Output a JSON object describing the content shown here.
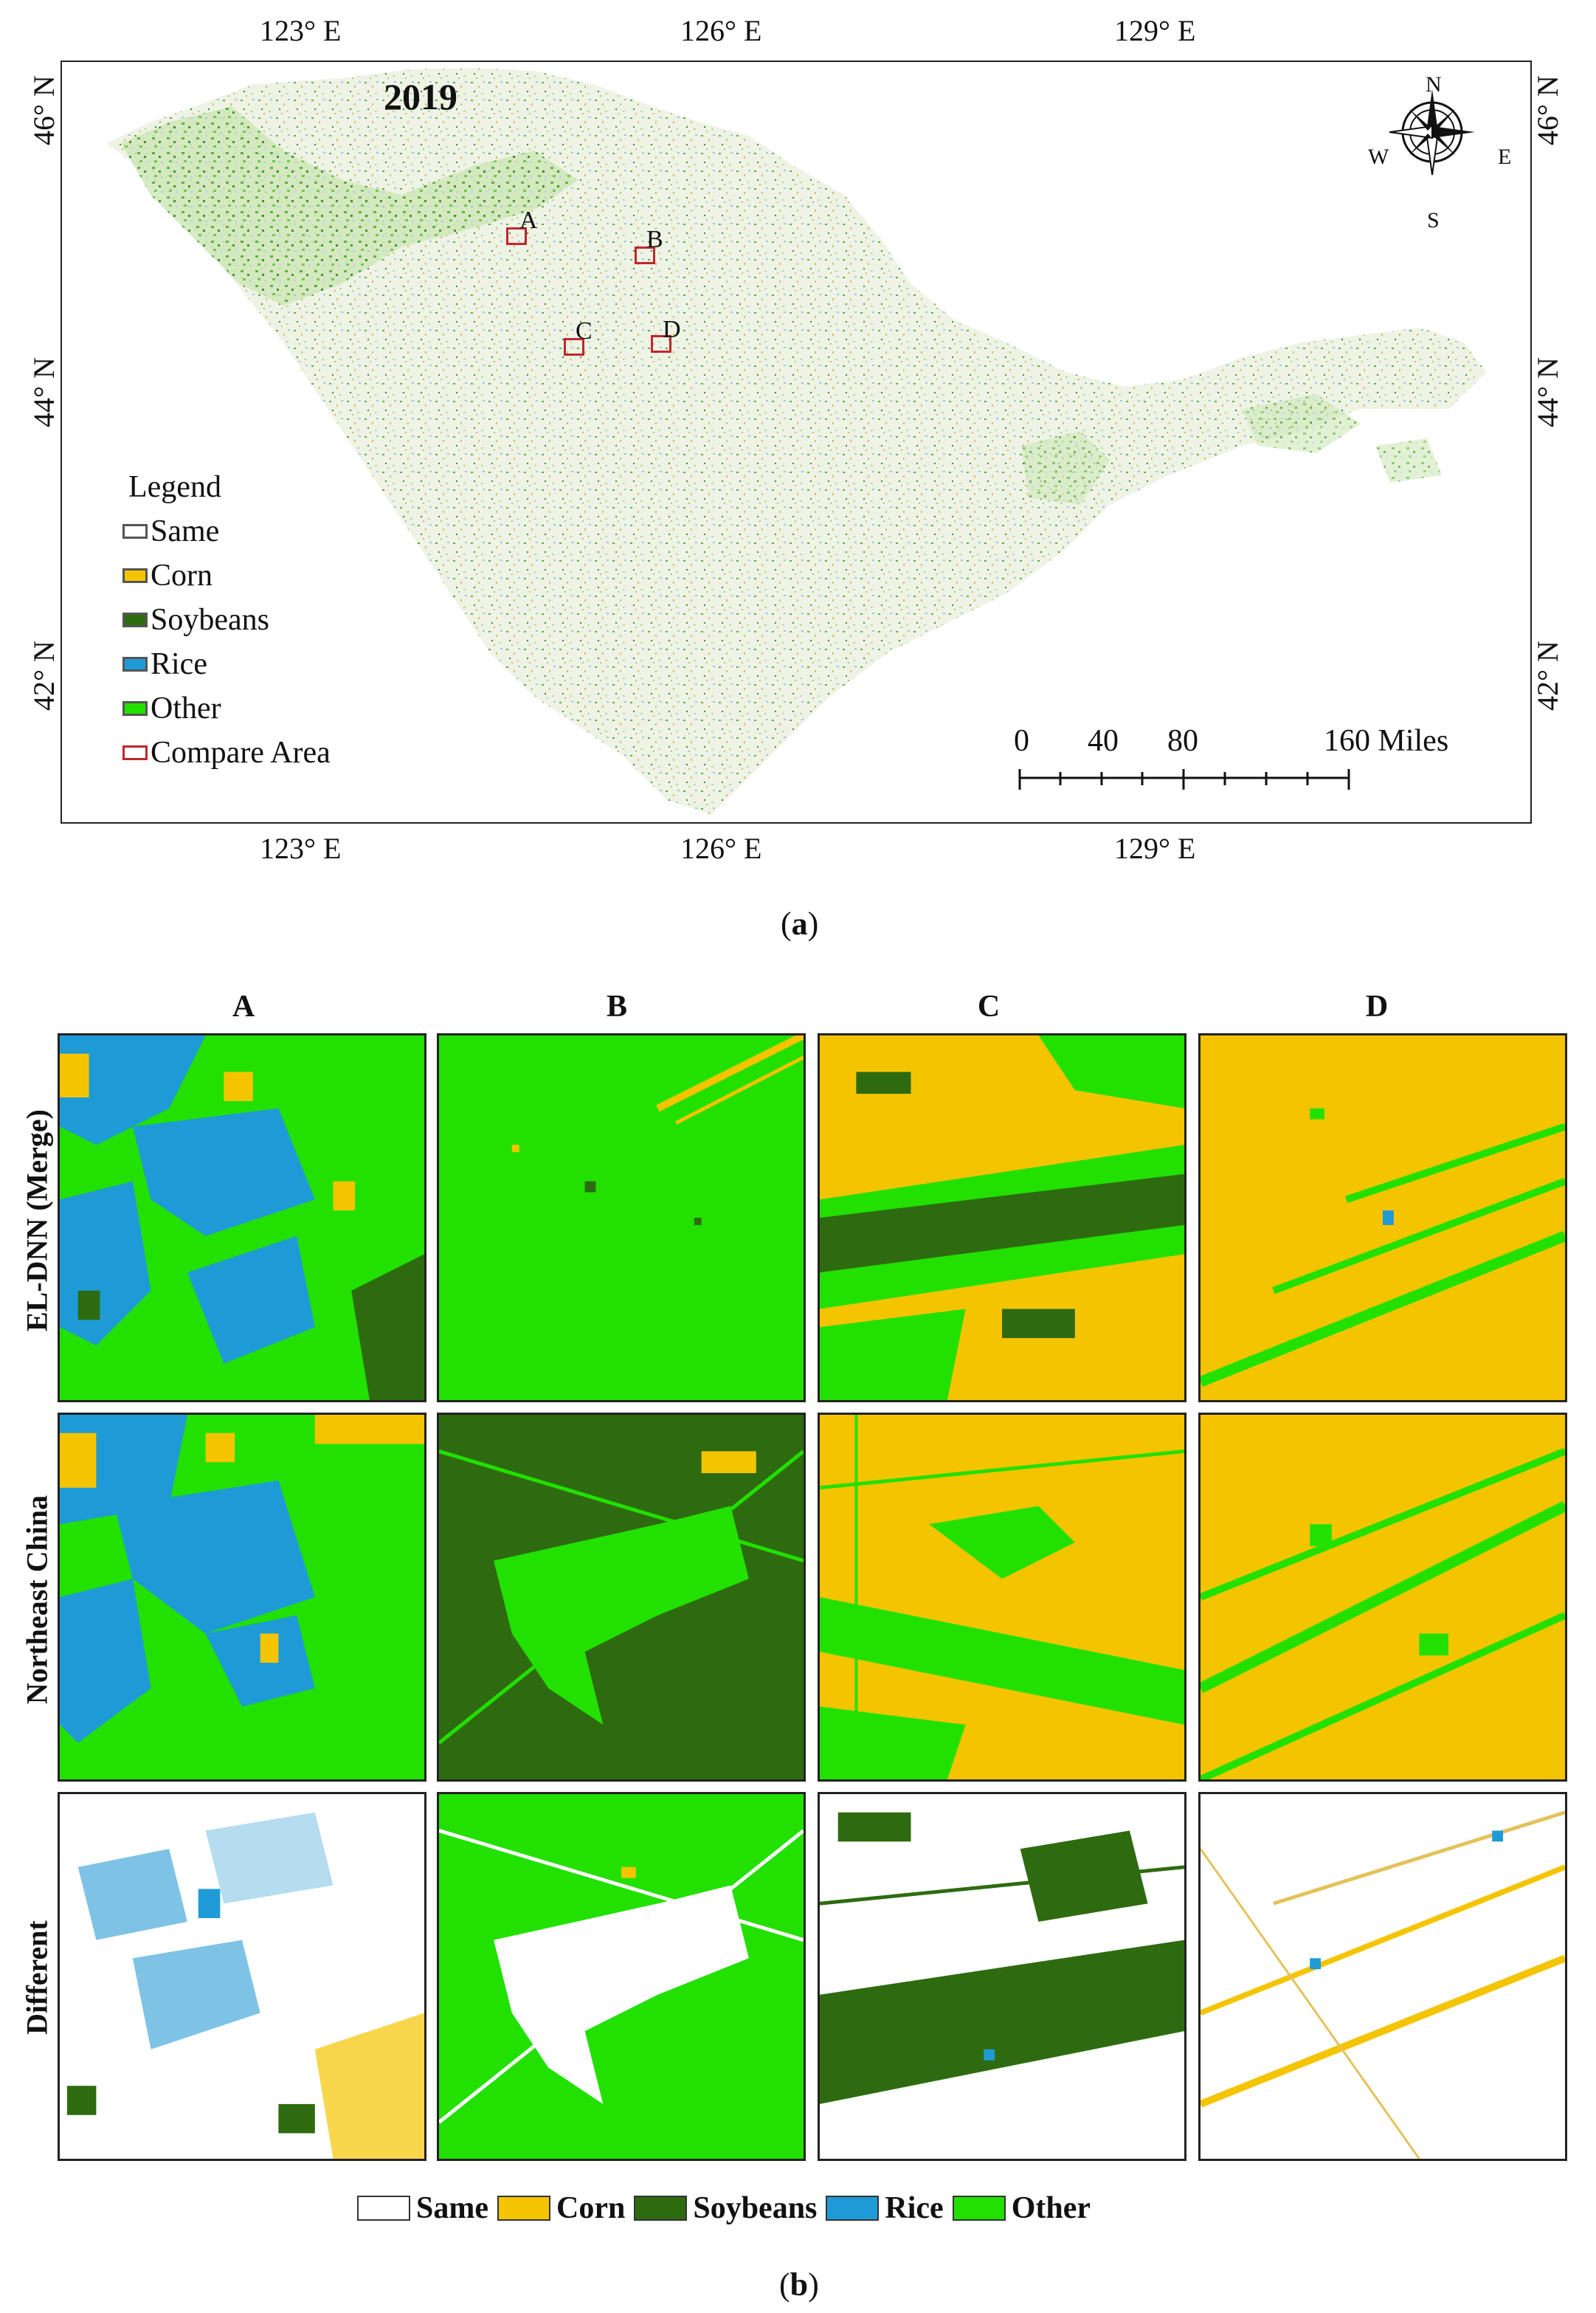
{
  "colors": {
    "same": "#ffffff",
    "corn": "#f5c400",
    "soybeans": "#2e6b10",
    "rice": "#1e9bd7",
    "other": "#22e000",
    "compare_area": "#c0272d"
  },
  "panel_a": {
    "year": "2019",
    "lon_labels": [
      "123° E",
      "126° E",
      "129° E"
    ],
    "lat_labels": [
      "46° N",
      "44° N",
      "42° N"
    ],
    "compass": {
      "n": "N",
      "s": "S",
      "e": "E",
      "w": "W"
    },
    "legend": {
      "title": "Legend",
      "items": [
        {
          "label": "Same",
          "color": "#ffffff"
        },
        {
          "label": "Corn",
          "color": "#f5c400"
        },
        {
          "label": "Soybeans",
          "color": "#2e6b10"
        },
        {
          "label": "Rice",
          "color": "#1e9bd7"
        },
        {
          "label": "Other",
          "color": "#22e000"
        },
        {
          "label": "Compare Area",
          "color": "#c0272d"
        }
      ]
    },
    "compare_areas": [
      "A",
      "B",
      "C",
      "D"
    ],
    "scale_bar": {
      "ticks": [
        "0",
        "40",
        "80",
        "160 Miles"
      ]
    },
    "caption": "a"
  },
  "panel_b": {
    "columns": [
      "A",
      "B",
      "C",
      "D"
    ],
    "rows": [
      "EL-DNN (Merge)",
      "Northeast China",
      "Different"
    ],
    "legend": [
      {
        "label": "Same",
        "color": "#ffffff"
      },
      {
        "label": "Corn",
        "color": "#f5c400"
      },
      {
        "label": "Soybeans",
        "color": "#2e6b10"
      },
      {
        "label": "Rice",
        "color": "#1e9bd7"
      },
      {
        "label": "Other",
        "color": "#22e000"
      }
    ],
    "caption": "b"
  }
}
